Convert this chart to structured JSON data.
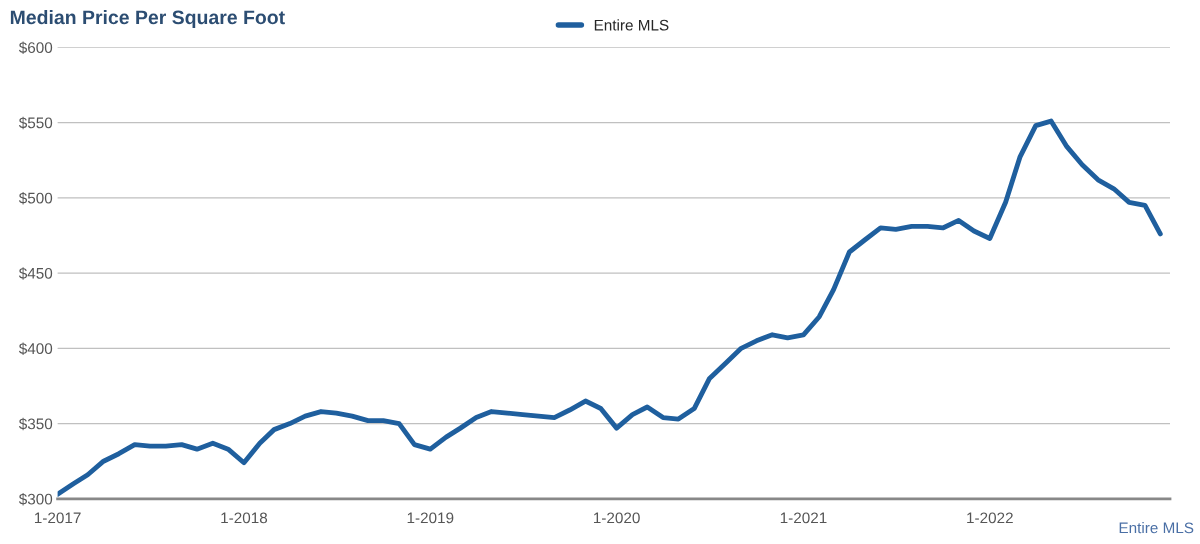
{
  "chart_data": {
    "type": "line",
    "title": "Median Price Per Square Foot",
    "x": [
      "2017-01",
      "2017-02",
      "2017-03",
      "2017-04",
      "2017-05",
      "2017-06",
      "2017-07",
      "2017-08",
      "2017-09",
      "2017-10",
      "2017-11",
      "2017-12",
      "2018-01",
      "2018-02",
      "2018-03",
      "2018-04",
      "2018-05",
      "2018-06",
      "2018-07",
      "2018-08",
      "2018-09",
      "2018-10",
      "2018-11",
      "2018-12",
      "2019-01",
      "2019-02",
      "2019-03",
      "2019-04",
      "2019-05",
      "2019-06",
      "2019-07",
      "2019-08",
      "2019-09",
      "2019-10",
      "2019-11",
      "2019-12",
      "2020-01",
      "2020-02",
      "2020-03",
      "2020-04",
      "2020-05",
      "2020-06",
      "2020-07",
      "2020-08",
      "2020-09",
      "2020-10",
      "2020-11",
      "2020-12",
      "2021-01",
      "2021-02",
      "2021-03",
      "2021-04",
      "2021-05",
      "2021-06",
      "2021-07",
      "2021-08",
      "2021-09",
      "2021-10",
      "2021-11",
      "2021-12",
      "2022-01",
      "2022-02",
      "2022-03",
      "2022-04",
      "2022-05",
      "2022-06",
      "2022-07",
      "2022-08",
      "2022-09",
      "2022-10",
      "2022-11",
      "2022-12"
    ],
    "series": [
      {
        "name": "Entire MLS",
        "color": "#1f5f9e",
        "values": [
          303,
          310,
          316,
          325,
          330,
          336,
          335,
          335,
          336,
          333,
          337,
          333,
          324,
          337,
          346,
          350,
          355,
          358,
          357,
          355,
          352,
          352,
          350,
          336,
          333,
          341,
          347,
          354,
          358,
          357,
          356,
          355,
          354,
          359,
          365,
          360,
          347,
          356,
          361,
          354,
          353,
          360,
          380,
          390,
          400,
          405,
          409,
          407,
          409,
          421,
          439,
          464,
          472,
          480,
          479,
          481,
          481,
          480,
          485,
          478,
          473,
          497,
          527,
          548,
          551,
          534,
          522,
          512,
          506,
          497,
          495,
          476
        ]
      }
    ],
    "xlim": [
      "2017-01",
      "2022-12-20"
    ],
    "xticks": [
      {
        "value": "2017-01",
        "label": "1-2017"
      },
      {
        "value": "2018-01",
        "label": "1-2018"
      },
      {
        "value": "2019-01",
        "label": "1-2019"
      },
      {
        "value": "2020-01",
        "label": "1-2020"
      },
      {
        "value": "2021-01",
        "label": "1-2021"
      },
      {
        "value": "2022-01",
        "label": "1-2022"
      }
    ],
    "ylim": [
      300,
      600
    ],
    "yticks": [
      {
        "value": 300,
        "label": "$300"
      },
      {
        "value": 350,
        "label": "$350"
      },
      {
        "value": 400,
        "label": "$400"
      },
      {
        "value": 450,
        "label": "$450"
      },
      {
        "value": 500,
        "label": "$500"
      },
      {
        "value": 550,
        "label": "$550"
      },
      {
        "value": 600,
        "label": "$600"
      }
    ],
    "grid": "y",
    "legend": "top",
    "marker": "none",
    "line_style": "solid",
    "annotations": [
      "Entire MLS"
    ]
  }
}
